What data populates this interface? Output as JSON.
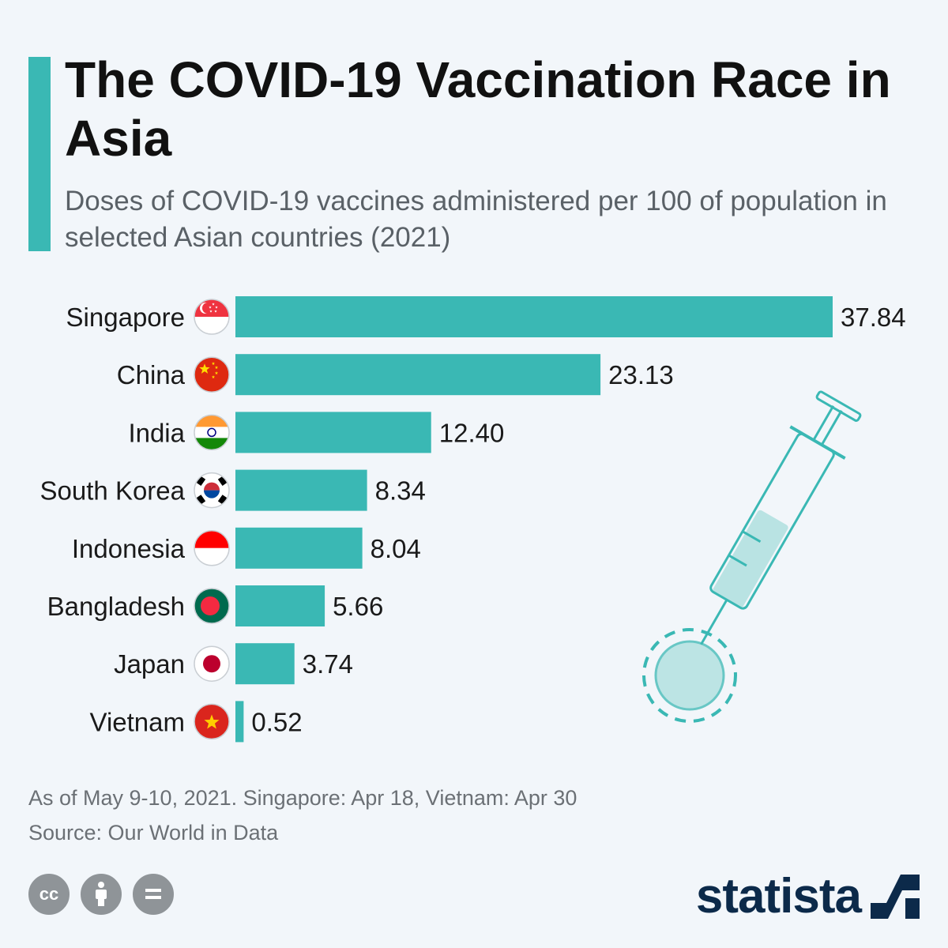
{
  "header": {
    "title": "The COVID-19 Vaccination Race in Asia",
    "subtitle": "Doses of COVID-19 vaccines administered per 100 of population in selected Asian countries (2021)"
  },
  "chart_data": {
    "type": "bar",
    "orientation": "horizontal",
    "categories": [
      "Singapore",
      "China",
      "India",
      "South Korea",
      "Indonesia",
      "Bangladesh",
      "Japan",
      "Vietnam"
    ],
    "values": [
      37.84,
      23.13,
      12.4,
      8.34,
      8.04,
      5.66,
      3.74,
      0.52
    ],
    "value_labels": [
      "37.84",
      "23.13",
      "12.40",
      "8.34",
      "8.04",
      "5.66",
      "3.74",
      "0.52"
    ],
    "xlim": [
      0,
      37.84
    ],
    "grid": false,
    "bar_color": "#3ab8b4"
  },
  "footer": {
    "note": "As of May 9-10, 2021. Singapore: Apr 18, Vietnam: Apr 30",
    "source": "Source: Our World in Data",
    "brand": "statista"
  },
  "icons": [
    "cc-icon",
    "attribution-icon",
    "no-derivatives-icon",
    "syringe-icon",
    "virus-icon",
    "statista-logo-icon"
  ],
  "colors": {
    "accent": "#3ab8b4",
    "title": "#111111",
    "subtitle": "#5a6167",
    "brand": "#0c2a4a"
  }
}
